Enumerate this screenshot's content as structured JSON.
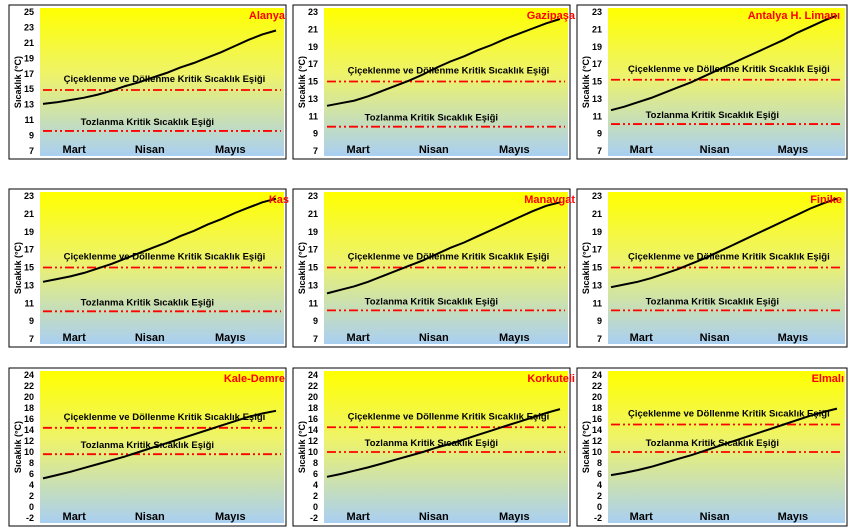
{
  "colors": {
    "grad_top": "#ffff00",
    "grad_bottom": "#a9cff2",
    "threshold": "#ff0000",
    "series": "#000000",
    "title": "#ff0000"
  },
  "chart_data": [
    {
      "type": "line",
      "title": "Alanya",
      "ylabel": "Sıcaklık (°C)",
      "yticks": [
        "7",
        "9",
        "11",
        "13",
        "15",
        "17",
        "19",
        "21",
        "23",
        "25"
      ],
      "ylim": [
        7,
        25
      ],
      "xcategories": [
        "Mart",
        "Nisan",
        "Mayıs"
      ],
      "series": [
        {
          "values": [
            13.1,
            13.3,
            13.6,
            13.9,
            14.3,
            14.8,
            15.4,
            15.9,
            16.5,
            17.1,
            17.8,
            18.4,
            19.1,
            19.8,
            20.6,
            21.4,
            22.1,
            22.6
          ]
        }
      ],
      "thresholds": [
        {
          "label": "Çiçeklenme ve Döllenme Kritik Sıcaklık Eşiği",
          "value": 14.9
        },
        {
          "label": "Tozlanma Kritik Sıcaklık Eşiği",
          "value": 9.6
        }
      ]
    },
    {
      "type": "line",
      "title": "Gazipaşa",
      "ylabel": "Sıcaklık (°C)",
      "yticks": [
        "7",
        "9",
        "11",
        "13",
        "15",
        "17",
        "19",
        "21",
        "23"
      ],
      "ylim": [
        7,
        23
      ],
      "xcategories": [
        "Mart",
        "Nisan",
        "Mayıs"
      ],
      "series": [
        {
          "values": [
            12.2,
            12.5,
            12.8,
            13.3,
            13.9,
            14.5,
            15.1,
            15.8,
            16.6,
            17.3,
            17.9,
            18.6,
            19.2,
            19.9,
            20.5,
            21.1,
            21.7,
            22.2
          ]
        }
      ],
      "thresholds": [
        {
          "label": "Çiçeklenme ve Döllenme Kritik Sıcaklık Eşiği",
          "value": 15.0
        },
        {
          "label": "Tozlanma Kritik Sıcaklık Eşiği",
          "value": 9.8
        }
      ]
    },
    {
      "type": "line",
      "title": "Antalya H. Limanı",
      "ylabel": "Sıcaklık (°C)",
      "yticks": [
        "7",
        "9",
        "11",
        "13",
        "15",
        "17",
        "19",
        "21",
        "23"
      ],
      "ylim": [
        7,
        23
      ],
      "xcategories": [
        "Mart",
        "Nisan",
        "Mayıs"
      ],
      "series": [
        {
          "values": [
            11.7,
            12.1,
            12.6,
            13.1,
            13.7,
            14.3,
            14.9,
            15.6,
            16.3,
            17.0,
            17.7,
            18.4,
            19.1,
            19.8,
            20.6,
            21.3,
            22.0,
            22.6
          ]
        }
      ],
      "thresholds": [
        {
          "label": "Çiçeklenme ve Döllenme Kritik Sıcaklık Eşiği",
          "value": 15.2
        },
        {
          "label": "Tozlanma Kritik Sıcaklık Eşiği",
          "value": 10.1
        }
      ]
    },
    {
      "type": "line",
      "title": "Kas",
      "ylabel": "Sıcaklık (°C)",
      "yticks": [
        "7",
        "9",
        "11",
        "13",
        "15",
        "17",
        "19",
        "21",
        "23"
      ],
      "ylim": [
        7,
        23
      ],
      "xcategories": [
        "Mart",
        "Nisan",
        "Mayıs"
      ],
      "series": [
        {
          "values": [
            13.4,
            13.7,
            14.0,
            14.4,
            14.9,
            15.4,
            16.0,
            16.6,
            17.2,
            17.8,
            18.5,
            19.1,
            19.8,
            20.4,
            21.1,
            21.7,
            22.3,
            22.7
          ]
        }
      ],
      "thresholds": [
        {
          "label": "Çiçeklenme ve Döllenme Kritik Sıcaklık Eşiği",
          "value": 15.0
        },
        {
          "label": "Tozlanma Kritik Sıcaklık Eşiği",
          "value": 10.1
        }
      ]
    },
    {
      "type": "line",
      "title": "Manavgat",
      "ylabel": "Sıcaklık (°C)",
      "yticks": [
        "7",
        "9",
        "11",
        "13",
        "15",
        "17",
        "19",
        "21",
        "23"
      ],
      "ylim": [
        7,
        23
      ],
      "xcategories": [
        "Mart",
        "Nisan",
        "Mayıs"
      ],
      "series": [
        {
          "values": [
            12.1,
            12.5,
            12.9,
            13.4,
            14.0,
            14.6,
            15.2,
            15.8,
            16.5,
            17.2,
            17.8,
            18.5,
            19.2,
            19.9,
            20.6,
            21.3,
            21.9,
            22.3
          ]
        }
      ],
      "thresholds": [
        {
          "label": "Çiçeklenme ve Döllenme Kritik Sıcaklık Eşiği",
          "value": 15.0
        },
        {
          "label": "Tozlanma Kritik Sıcaklık Eşiği",
          "value": 10.2
        }
      ]
    },
    {
      "type": "line",
      "title": "Finike",
      "ylabel": "Sıcaklık (°C)",
      "yticks": [
        "7",
        "9",
        "11",
        "13",
        "15",
        "17",
        "19",
        "21",
        "23"
      ],
      "ylim": [
        7,
        23
      ],
      "xcategories": [
        "Mart",
        "Nisan",
        "Mayıs"
      ],
      "series": [
        {
          "values": [
            12.8,
            13.1,
            13.4,
            13.8,
            14.3,
            14.8,
            15.4,
            16.0,
            16.7,
            17.4,
            18.1,
            18.8,
            19.5,
            20.2,
            20.9,
            21.6,
            22.2,
            22.7
          ]
        }
      ],
      "thresholds": [
        {
          "label": "Çiçeklenme ve Döllenme Kritik Sıcaklık Eşiği",
          "value": 15.0
        },
        {
          "label": "Tozlanma Kritik Sıcaklık Eşiği",
          "value": 10.2
        }
      ]
    },
    {
      "type": "line",
      "title": "Kale-Demre",
      "ylabel": "Sıcaklık (°C)",
      "yticks": [
        "-2",
        "0",
        "2",
        "4",
        "6",
        "8",
        "10",
        "12",
        "14",
        "16",
        "18",
        "20",
        "22",
        "24"
      ],
      "ylim": [
        -2,
        24
      ],
      "xcategories": [
        "Mart",
        "Nisan",
        "Mayıs"
      ],
      "series": [
        {
          "values": [
            5.2,
            5.8,
            6.4,
            7.1,
            7.8,
            8.5,
            9.2,
            10.0,
            10.8,
            11.6,
            12.4,
            13.2,
            14.0,
            14.8,
            15.6,
            16.4,
            17.0,
            17.5
          ]
        }
      ],
      "thresholds": [
        {
          "label": "Çiçeklenme ve Döllenme Kritik Sıcaklık Eşiği",
          "value": 14.4
        },
        {
          "label": "Tozlanma Kritik Sıcaklık Eşiği",
          "value": 9.6
        }
      ]
    },
    {
      "type": "line",
      "title": "Korkuteli",
      "ylabel": "Sıcaklık (°C)",
      "yticks": [
        "-2",
        "0",
        "2",
        "4",
        "6",
        "8",
        "10",
        "12",
        "14",
        "16",
        "18",
        "20",
        "22",
        "24"
      ],
      "ylim": [
        -2,
        24
      ],
      "xcategories": [
        "Mart",
        "Nisan",
        "Mayıs"
      ],
      "series": [
        {
          "values": [
            5.5,
            6.0,
            6.6,
            7.2,
            7.9,
            8.6,
            9.3,
            10.0,
            10.8,
            11.5,
            12.3,
            13.1,
            13.9,
            14.7,
            15.5,
            16.3,
            17.1,
            17.8
          ]
        }
      ],
      "thresholds": [
        {
          "label": "Çiçeklenme ve Döllenme Kritik Sıcaklık Eşiği",
          "value": 14.5
        },
        {
          "label": "Tozlanma Kritik Sıcaklık Eşiği",
          "value": 10.0
        }
      ]
    },
    {
      "type": "line",
      "title": "Elmalı",
      "ylabel": "Sıcaklık (°C)",
      "yticks": [
        "-2",
        "0",
        "2",
        "4",
        "6",
        "8",
        "10",
        "12",
        "14",
        "16",
        "18",
        "20",
        "22",
        "24"
      ],
      "ylim": [
        -2,
        24
      ],
      "xcategories": [
        "Mart",
        "Nisan",
        "Mayıs"
      ],
      "series": [
        {
          "values": [
            5.8,
            6.2,
            6.7,
            7.3,
            8.0,
            8.7,
            9.4,
            10.2,
            11.0,
            11.8,
            12.6,
            13.4,
            14.2,
            15.0,
            15.8,
            16.6,
            17.3,
            17.9
          ]
        }
      ],
      "thresholds": [
        {
          "label": "Çiçeklenme ve Döllenme Kritik Sıcaklık Eşiği",
          "value": 15.0
        },
        {
          "label": "Tozlanma Kritik Sıcaklık Eşiği",
          "value": 10.0
        }
      ]
    }
  ]
}
